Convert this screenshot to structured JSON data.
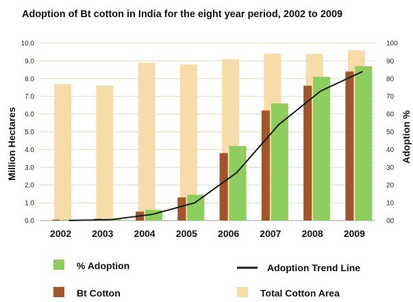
{
  "chart_data": {
    "type": "bar",
    "title": "Adoption of Bt cotton in India for the eight year period, 2002 to 2009",
    "ylabel": "Million Hectares",
    "y2label": "Adoption %",
    "categories": [
      "2002",
      "2003",
      "2004",
      "2005",
      "2006",
      "2007",
      "2008",
      "2009"
    ],
    "ylim": [
      0,
      10
    ],
    "y2lim": [
      0,
      100
    ],
    "yticks": [
      "0.0",
      "1.0",
      "2.0",
      "3.0",
      "4.0",
      "5.0",
      "6.0",
      "7.0",
      "8.0",
      "9.0",
      "10.0"
    ],
    "y2ticks": [
      "00",
      "10",
      "20",
      "30",
      "40",
      "50",
      "60",
      "70",
      "80",
      "90",
      "100"
    ],
    "grid": true,
    "series": [
      {
        "name": "Total Cotton Area",
        "axis": "left",
        "color": "#f7dca9",
        "values": [
          7.7,
          7.6,
          8.9,
          8.8,
          9.1,
          9.4,
          9.4,
          9.6
        ]
      },
      {
        "name": "Bt Cotton",
        "axis": "left",
        "color": "#a0562a",
        "values": [
          0.05,
          0.1,
          0.5,
          1.3,
          3.8,
          6.2,
          7.6,
          8.4
        ]
      },
      {
        "name": "% Adoption",
        "axis": "right",
        "color": "#8dce5e",
        "values": [
          0.5,
          1,
          6,
          14.5,
          42,
          66,
          81,
          87
        ]
      },
      {
        "name": "Adoption Trend Line",
        "axis": "right",
        "type": "line",
        "color": "#1a1a1a",
        "values": [
          0,
          0.5,
          3.5,
          10,
          27,
          54,
          73,
          84
        ]
      }
    ],
    "legend": [
      {
        "label": "% Adoption",
        "symbol": "box",
        "color": "#8dce5e"
      },
      {
        "label": "Bt Cotton",
        "symbol": "box",
        "color": "#a0562a"
      },
      {
        "label": "Adoption Trend Line",
        "symbol": "line",
        "color": "#1a1a1a"
      },
      {
        "label": "Total Cotton Area",
        "symbol": "box",
        "color": "#f7dca9"
      }
    ],
    "legend_position": "bottom"
  }
}
